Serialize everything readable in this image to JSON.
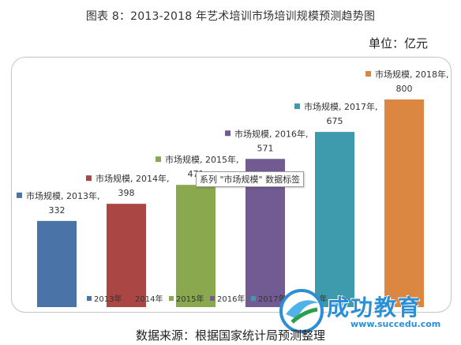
{
  "title": "图表 8：2013-2018 年艺术培训市场培训规模预测趋势图",
  "unit": "单位：亿元",
  "source": "数据来源：根据国家统计局预测整理",
  "tooltip": "系列 \"市场规模\" 数据标签",
  "logo": {
    "name": "成功教育",
    "url": "www.succedu.com"
  },
  "chart_data": {
    "type": "bar",
    "categories": [
      "2013年",
      "2014年",
      "2015年",
      "2016年",
      "2017年",
      "2018年"
    ],
    "series_label": "市场规模",
    "values": [
      332,
      398,
      471,
      571,
      675,
      800
    ],
    "colors": [
      "#4a74a8",
      "#aa4644",
      "#8aa84e",
      "#725a92",
      "#3d9bad",
      "#dc8741"
    ],
    "ylim": [
      0,
      800
    ]
  }
}
